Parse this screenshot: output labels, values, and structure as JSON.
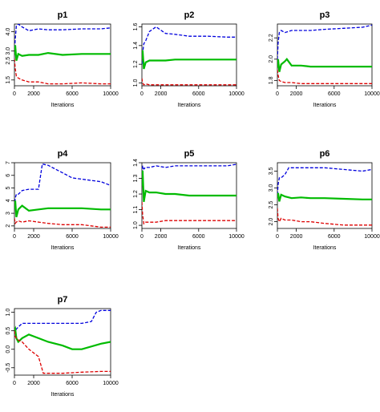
{
  "chart_data": [
    {
      "type": "line",
      "title": "p1",
      "xlabel": "Iterations",
      "ylabel": "",
      "xlim": [
        0,
        10000
      ],
      "ylim": [
        1.2,
        4.4
      ],
      "x_ticks": [
        0,
        2000,
        6000,
        10000
      ],
      "y_ticks": [
        1.5,
        2.5,
        3.0,
        4.0
      ],
      "series": [
        {
          "color": "#0000dd",
          "dash": "dashed",
          "x": [
            0,
            80,
            200,
            400,
            800,
            1500,
            2500,
            3500,
            5000,
            7000,
            9000,
            10000
          ],
          "y": [
            2.9,
            3.6,
            4.3,
            4.4,
            4.25,
            4.05,
            4.15,
            4.1,
            4.1,
            4.15,
            4.15,
            4.2
          ]
        },
        {
          "color": "#00bb00",
          "dash": "solid",
          "x": [
            0,
            80,
            200,
            400,
            800,
            1500,
            2500,
            3500,
            5000,
            7000,
            9000,
            10000
          ],
          "y": [
            2.8,
            3.3,
            2.5,
            2.85,
            2.75,
            2.8,
            2.8,
            2.9,
            2.8,
            2.85,
            2.85,
            2.85
          ]
        },
        {
          "color": "#dd0000",
          "dash": "dashed",
          "x": [
            0,
            80,
            200,
            400,
            800,
            1500,
            2500,
            3500,
            5000,
            7000,
            9000,
            10000
          ],
          "y": [
            2.6,
            2.1,
            1.7,
            1.6,
            1.5,
            1.4,
            1.4,
            1.3,
            1.3,
            1.35,
            1.3,
            1.3
          ]
        }
      ]
    },
    {
      "type": "line",
      "title": "p2",
      "xlabel": "Iterations",
      "ylabel": "",
      "xlim": [
        0,
        10000
      ],
      "ylim": [
        0.97,
        1.63
      ],
      "x_ticks": [
        0,
        2000,
        6000,
        10000
      ],
      "y_ticks": [
        1.0,
        1.2,
        1.4,
        1.6
      ],
      "series": [
        {
          "color": "#0000dd",
          "dash": "dashed",
          "x": [
            0,
            80,
            200,
            400,
            800,
            1500,
            2500,
            3500,
            5000,
            7000,
            9000,
            10000
          ],
          "y": [
            1.2,
            1.32,
            1.42,
            1.45,
            1.55,
            1.6,
            1.53,
            1.52,
            1.5,
            1.5,
            1.49,
            1.49
          ]
        },
        {
          "color": "#00bb00",
          "dash": "solid",
          "x": [
            0,
            80,
            200,
            400,
            800,
            1500,
            2500,
            3500,
            5000,
            7000,
            9000,
            10000
          ],
          "y": [
            1.25,
            1.35,
            1.15,
            1.22,
            1.24,
            1.24,
            1.24,
            1.25,
            1.25,
            1.25,
            1.25,
            1.25
          ]
        },
        {
          "color": "#dd0000",
          "dash": "dashed",
          "x": [
            0,
            80,
            200,
            400,
            800,
            1500,
            2500,
            3500,
            5000,
            7000,
            9000,
            10000
          ],
          "y": [
            1.05,
            1.0,
            0.98,
            0.99,
            0.98,
            0.98,
            0.98,
            0.98,
            0.98,
            0.98,
            0.98,
            0.98
          ]
        }
      ]
    },
    {
      "type": "line",
      "title": "p3",
      "xlabel": "Iterations",
      "ylabel": "",
      "xlim": [
        0,
        10000
      ],
      "ylim": [
        1.75,
        2.33
      ],
      "x_ticks": [
        0,
        2000,
        6000,
        10000
      ],
      "y_ticks": [
        1.8,
        2.0,
        2.2
      ],
      "series": [
        {
          "color": "#0000dd",
          "dash": "dashed",
          "x": [
            0,
            80,
            200,
            400,
            800,
            1500,
            2500,
            3500,
            5000,
            7000,
            9000,
            10000
          ],
          "y": [
            2.0,
            2.15,
            2.25,
            2.27,
            2.25,
            2.27,
            2.27,
            2.27,
            2.28,
            2.29,
            2.3,
            2.32
          ]
        },
        {
          "color": "#00bb00",
          "dash": "solid",
          "x": [
            0,
            80,
            200,
            400,
            800,
            1000,
            1500,
            2500,
            3500,
            5000,
            7000,
            10000
          ],
          "y": [
            1.92,
            2.0,
            1.88,
            1.95,
            1.98,
            2.0,
            1.94,
            1.94,
            1.93,
            1.93,
            1.93,
            1.93
          ]
        },
        {
          "color": "#dd0000",
          "dash": "dashed",
          "x": [
            0,
            80,
            200,
            400,
            800,
            1500,
            2500,
            3500,
            5000,
            7000,
            9000,
            10000
          ],
          "y": [
            1.9,
            1.85,
            1.8,
            1.79,
            1.78,
            1.78,
            1.77,
            1.77,
            1.77,
            1.77,
            1.77,
            1.77
          ]
        }
      ]
    },
    {
      "type": "line",
      "title": "p4",
      "xlabel": "Iterations",
      "ylabel": "",
      "xlim": [
        0,
        10000
      ],
      "ylim": [
        1.8,
        7.0
      ],
      "x_ticks": [
        0,
        2000,
        6000,
        10000
      ],
      "y_ticks": [
        2,
        3,
        4,
        5,
        6,
        7
      ],
      "series": [
        {
          "color": "#0000dd",
          "dash": "dashed",
          "x": [
            0,
            80,
            200,
            400,
            800,
            1500,
            2500,
            2900,
            3500,
            5000,
            6000,
            7000,
            9000,
            10000
          ],
          "y": [
            3.5,
            4.2,
            4.5,
            4.5,
            4.8,
            4.9,
            4.9,
            6.9,
            6.8,
            6.2,
            5.8,
            5.7,
            5.5,
            5.2
          ]
        },
        {
          "color": "#00bb00",
          "dash": "solid",
          "x": [
            0,
            80,
            200,
            400,
            800,
            1500,
            2500,
            3500,
            5000,
            7000,
            9000,
            10000
          ],
          "y": [
            3.3,
            4.0,
            2.7,
            3.3,
            3.6,
            3.2,
            3.3,
            3.4,
            3.4,
            3.4,
            3.3,
            3.3
          ]
        },
        {
          "color": "#dd0000",
          "dash": "dashed",
          "x": [
            0,
            80,
            200,
            400,
            800,
            1500,
            2500,
            3500,
            5000,
            7000,
            9000,
            10000
          ],
          "y": [
            2.6,
            2.2,
            2.3,
            2.4,
            2.3,
            2.4,
            2.3,
            2.2,
            2.1,
            2.1,
            1.9,
            1.9
          ]
        }
      ]
    },
    {
      "type": "line",
      "title": "p5",
      "xlabel": "Iterations",
      "ylabel": "",
      "xlim": [
        0,
        10000
      ],
      "ylim": [
        0.98,
        1.4
      ],
      "x_ticks": [
        0,
        2000,
        6000,
        10000
      ],
      "y_ticks": [
        1.0,
        1.1,
        1.2,
        1.3,
        1.4
      ],
      "series": [
        {
          "color": "#0000dd",
          "dash": "dashed",
          "x": [
            0,
            80,
            200,
            400,
            800,
            1500,
            2500,
            3500,
            5000,
            7000,
            9000,
            10000
          ],
          "y": [
            1.3,
            1.38,
            1.36,
            1.37,
            1.37,
            1.38,
            1.37,
            1.38,
            1.38,
            1.38,
            1.38,
            1.39
          ]
        },
        {
          "color": "#00bb00",
          "dash": "solid",
          "x": [
            0,
            80,
            200,
            400,
            800,
            1500,
            2500,
            3500,
            5000,
            7000,
            9000,
            10000
          ],
          "y": [
            1.25,
            1.35,
            1.15,
            1.22,
            1.21,
            1.21,
            1.2,
            1.2,
            1.19,
            1.19,
            1.19,
            1.19
          ]
        },
        {
          "color": "#dd0000",
          "dash": "dashed",
          "x": [
            0,
            80,
            200,
            400,
            800,
            1500,
            2500,
            3500,
            5000,
            7000,
            9000,
            10000
          ],
          "y": [
            1.15,
            1.07,
            1.01,
            1.02,
            1.02,
            1.02,
            1.03,
            1.03,
            1.03,
            1.03,
            1.03,
            1.03
          ]
        }
      ]
    },
    {
      "type": "line",
      "title": "p6",
      "xlabel": "Iterations",
      "ylabel": "",
      "xlim": [
        0,
        10000
      ],
      "ylim": [
        1.8,
        3.75
      ],
      "x_ticks": [
        0,
        2000,
        6000,
        10000
      ],
      "y_ticks": [
        2.0,
        2.5,
        3.0,
        3.5
      ],
      "series": [
        {
          "color": "#0000dd",
          "dash": "dashed",
          "x": [
            0,
            80,
            200,
            400,
            800,
            1200,
            1500,
            2500,
            3500,
            5000,
            7000,
            9000,
            10000
          ],
          "y": [
            2.8,
            3.1,
            3.3,
            3.3,
            3.4,
            3.6,
            3.6,
            3.6,
            3.6,
            3.6,
            3.55,
            3.5,
            3.55
          ]
        },
        {
          "color": "#00bb00",
          "dash": "solid",
          "x": [
            0,
            80,
            200,
            400,
            800,
            1500,
            2500,
            3500,
            5000,
            7000,
            9000,
            10000
          ],
          "y": [
            2.7,
            2.85,
            2.6,
            2.8,
            2.75,
            2.7,
            2.72,
            2.7,
            2.7,
            2.68,
            2.66,
            2.66
          ]
        },
        {
          "color": "#dd0000",
          "dash": "dashed",
          "x": [
            0,
            80,
            200,
            400,
            800,
            1500,
            2500,
            3500,
            5000,
            7000,
            9000,
            10000
          ],
          "y": [
            2.4,
            2.1,
            2.0,
            2.1,
            2.05,
            2.05,
            2.0,
            2.0,
            1.95,
            1.9,
            1.9,
            1.9
          ]
        }
      ]
    },
    {
      "type": "line",
      "title": "p7",
      "xlabel": "Iterations",
      "ylabel": "",
      "xlim": [
        0,
        10000
      ],
      "ylim": [
        -0.7,
        1.1
      ],
      "x_ticks": [
        0,
        2000,
        6000,
        10000
      ],
      "y_ticks": [
        -0.5,
        0.0,
        0.5,
        1.0
      ],
      "series": [
        {
          "color": "#0000dd",
          "dash": "dashed",
          "x": [
            0,
            80,
            200,
            400,
            800,
            1500,
            2500,
            3500,
            5000,
            7000,
            8000,
            8500,
            9000,
            10000
          ],
          "y": [
            0.5,
            0.45,
            0.55,
            0.6,
            0.7,
            0.7,
            0.7,
            0.7,
            0.7,
            0.7,
            0.75,
            1.0,
            1.05,
            1.05
          ]
        },
        {
          "color": "#00bb00",
          "dash": "solid",
          "x": [
            0,
            80,
            200,
            400,
            800,
            1500,
            2500,
            3500,
            5000,
            6000,
            7000,
            9000,
            10000
          ],
          "y": [
            0.5,
            0.55,
            0.3,
            0.2,
            0.3,
            0.4,
            0.3,
            0.2,
            0.1,
            0.0,
            0.0,
            0.15,
            0.2
          ]
        },
        {
          "color": "#dd0000",
          "dash": "dashed",
          "x": [
            0,
            80,
            200,
            400,
            800,
            1500,
            2500,
            3000,
            3500,
            5000,
            7000,
            9000,
            10000
          ],
          "y": [
            0.5,
            0.35,
            0.3,
            0.25,
            0.2,
            0.0,
            -0.2,
            -0.65,
            -0.65,
            -0.65,
            -0.62,
            -0.6,
            -0.6
          ]
        }
      ]
    }
  ]
}
